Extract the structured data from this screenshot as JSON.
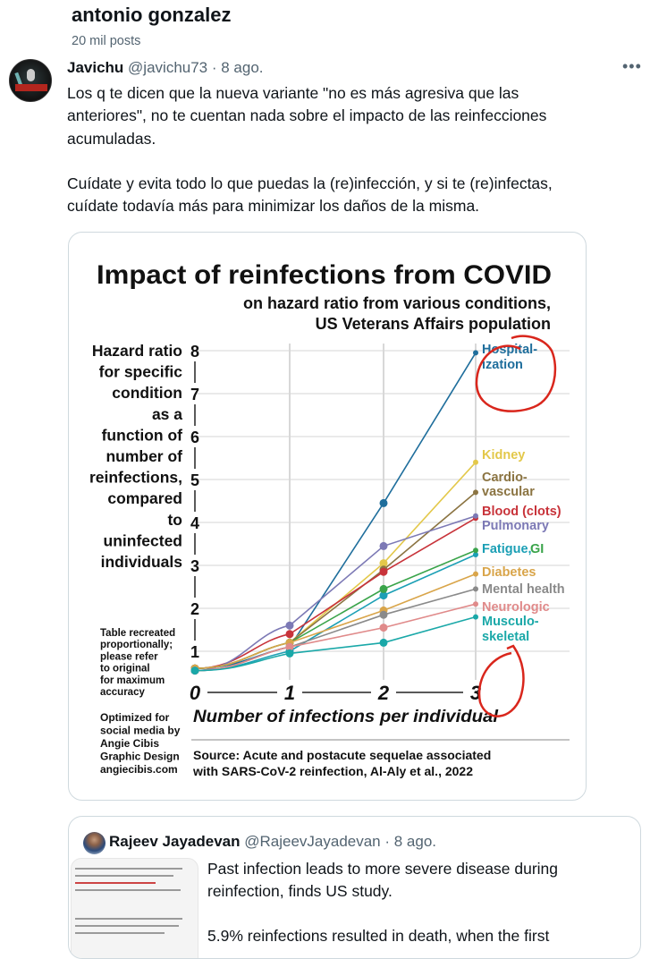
{
  "profile": {
    "name": "antonio gonzalez",
    "post_count": "20 mil posts"
  },
  "tweet": {
    "author_name": "Javichu",
    "author_handle": "@javichu73",
    "separator": " · ",
    "date": "8 ago.",
    "more_icon": "more-horizontal-icon",
    "more_label": "•••",
    "text": "Los q te dicen que la nueva variante \"no es más agresiva que las\nanteriores\", no te cuentan nada sobre el impacto de las reinfecciones\nacumuladas.\n\nCuídate y evita todo lo que puedas la (re)infección, y si te (re)infectas,\ncuídate todavía más para minimizar los daños de la misma."
  },
  "quote": {
    "author_name": "Rajeev Jayadevan",
    "author_handle": "@RajeevJayadevan",
    "separator": " · ",
    "date": "8 ago.",
    "text": "Past infection leads to more severe disease during\nreinfection, finds US study.\n\n5.9% reinfections resulted in death, when the first"
  },
  "chart_data": {
    "type": "line",
    "title": "Impact of reinfections from COVID",
    "subtitle": [
      "on hazard ratio from various conditions,",
      "US Veterans Affairs population"
    ],
    "ylabel_lines": [
      "Hazard ratio",
      "for specific",
      "condition",
      "as a",
      "function of",
      "number of",
      "reinfections,",
      "compared",
      "to",
      "uninfected",
      "individuals"
    ],
    "xlabel": "Number of infections per individual",
    "x": [
      0,
      1,
      2,
      3
    ],
    "x_tick_labels": [
      "0",
      "1",
      "2",
      "3"
    ],
    "y_tick_labels": [
      "1",
      "2",
      "3",
      "4",
      "5",
      "6",
      "7",
      "8"
    ],
    "ylim": [
      0.5,
      8
    ],
    "grid": true,
    "series": [
      {
        "name": "Hospitalization",
        "label_lines": [
          "Hospital-",
          "ization"
        ],
        "color": "#1f6e9c",
        "values": [
          0.6,
          1.1,
          4.45,
          7.95
        ]
      },
      {
        "name": "Kidney",
        "label_lines": [
          "Kidney"
        ],
        "color": "#e3c84a",
        "values": [
          0.6,
          1.2,
          3.05,
          5.4
        ]
      },
      {
        "name": "Cardiovascular",
        "label_lines": [
          "Cardio-",
          "vascular"
        ],
        "color": "#8b7442",
        "values": [
          0.6,
          1.2,
          2.9,
          4.7
        ]
      },
      {
        "name": "Blood (clots)",
        "label_lines": [
          "Blood (clots)"
        ],
        "color": "#c8333a",
        "values": [
          0.6,
          1.4,
          2.85,
          4.1
        ]
      },
      {
        "name": "Pulmonary",
        "label_lines": [
          "Pulmonary"
        ],
        "color": "#7c79b5",
        "values": [
          0.55,
          1.6,
          3.45,
          4.15
        ]
      },
      {
        "name": "Fatigue",
        "label_lines": [
          "Fatigue,"
        ],
        "color": "#1b9fb5",
        "values": [
          0.55,
          1.0,
          2.3,
          3.25
        ]
      },
      {
        "name": "GI",
        "label_lines": [
          "GI"
        ],
        "color": "#3aa44a",
        "values": [
          0.6,
          1.2,
          2.45,
          3.35
        ]
      },
      {
        "name": "Diabetes",
        "label_lines": [
          "Diabetes"
        ],
        "color": "#d9a54a",
        "values": [
          0.6,
          1.2,
          1.95,
          2.8
        ]
      },
      {
        "name": "Mental health",
        "label_lines": [
          "Mental health"
        ],
        "color": "#8a8a8a",
        "values": [
          0.55,
          1.1,
          1.85,
          2.45
        ]
      },
      {
        "name": "Neurologic",
        "label_lines": [
          "Neurologic"
        ],
        "color": "#e08a8a",
        "values": [
          0.55,
          1.1,
          1.55,
          2.1
        ]
      },
      {
        "name": "Musculoskeletal",
        "label_lines": [
          "Musculo-",
          "skeletal"
        ],
        "color": "#1aa8a8",
        "values": [
          0.55,
          0.95,
          1.2,
          1.8
        ]
      }
    ],
    "note": [
      "Table recreated",
      "proportionally;",
      "please refer",
      "to original",
      "for maximum",
      "accuracy"
    ],
    "credit": [
      "Optimized for",
      "social media by",
      "Angie Cibis",
      "Graphic Design",
      "angiecibis.com"
    ],
    "source": [
      "Source: Acute and postacute sequelae associated",
      "with SARS-CoV-2 reinfection, Al-Aly et al., 2022"
    ],
    "annotation_color": "#d9261c"
  }
}
